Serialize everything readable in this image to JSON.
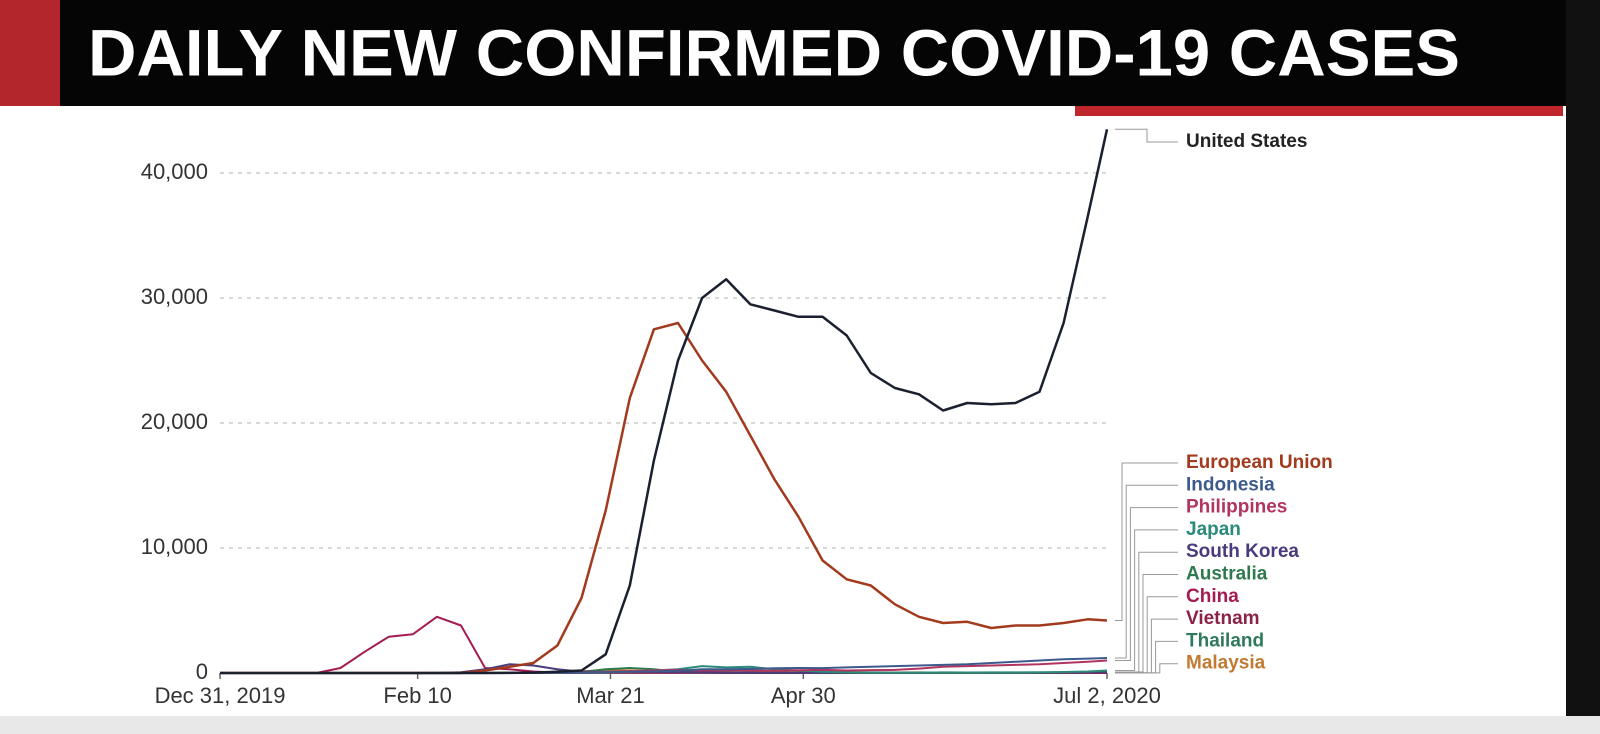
{
  "chart_data": {
    "type": "line",
    "title": "DAILY NEW CONFIRMED COVID-19 CASES",
    "x": [
      "2019-12-31",
      "2020-01-05",
      "2020-01-10",
      "2020-01-15",
      "2020-01-20",
      "2020-01-25",
      "2020-01-30",
      "2020-02-04",
      "2020-02-09",
      "2020-02-14",
      "2020-02-19",
      "2020-02-24",
      "2020-02-29",
      "2020-03-05",
      "2020-03-10",
      "2020-03-15",
      "2020-03-20",
      "2020-03-25",
      "2020-03-30",
      "2020-04-04",
      "2020-04-09",
      "2020-04-14",
      "2020-04-19",
      "2020-04-24",
      "2020-04-29",
      "2020-05-04",
      "2020-05-09",
      "2020-05-14",
      "2020-05-19",
      "2020-05-24",
      "2020-05-29",
      "2020-06-03",
      "2020-06-08",
      "2020-06-13",
      "2020-06-18",
      "2020-06-23",
      "2020-06-28",
      "2020-07-02"
    ],
    "xlim": [
      "2019-12-31",
      "2020-07-02"
    ],
    "xticks": [
      {
        "value": "2019-12-31",
        "label": "Dec 31, 2019"
      },
      {
        "value": "2020-02-10",
        "label": "Feb 10"
      },
      {
        "value": "2020-03-21",
        "label": "Mar 21"
      },
      {
        "value": "2020-04-30",
        "label": "Apr 30"
      },
      {
        "value": "2020-07-02",
        "label": "Jul 2, 2020"
      }
    ],
    "ylim": [
      0,
      44000
    ],
    "yticks": [
      0,
      {
        "value": 10000,
        "label": "10,000"
      },
      {
        "value": 20000,
        "label": "20,000"
      },
      {
        "value": 30000,
        "label": "30,000"
      },
      {
        "value": 40000,
        "label": "40,000"
      }
    ],
    "grid": true,
    "series": [
      {
        "name": "United States",
        "color": "#1b2030",
        "values": [
          0,
          0,
          0,
          0,
          0,
          0,
          0,
          0,
          0,
          0,
          0,
          0,
          10,
          30,
          100,
          200,
          1500,
          7000,
          17000,
          25000,
          30000,
          31500,
          29500,
          29000,
          28500,
          28500,
          27000,
          24000,
          22800,
          22300,
          21000,
          21600,
          21500,
          21600,
          22500,
          28000,
          36500,
          43500
        ]
      },
      {
        "name": "European Union",
        "color": "#a23a1e",
        "values": [
          0,
          0,
          0,
          0,
          0,
          0,
          0,
          0,
          0,
          0,
          0,
          200,
          500,
          800,
          2200,
          6000,
          13000,
          22000,
          27500,
          28000,
          25000,
          22500,
          19000,
          15500,
          12500,
          9000,
          7500,
          7000,
          5500,
          4500,
          4000,
          4100,
          3600,
          3800,
          3800,
          4000,
          4300,
          4200
        ]
      },
      {
        "name": "Indonesia",
        "color": "#3d5a8c",
        "values": [
          0,
          0,
          0,
          0,
          0,
          0,
          0,
          0,
          0,
          0,
          0,
          0,
          0,
          0,
          5,
          20,
          60,
          100,
          120,
          180,
          300,
          300,
          330,
          380,
          400,
          390,
          450,
          500,
          550,
          600,
          650,
          700,
          800,
          900,
          1000,
          1100,
          1150,
          1200
        ]
      },
      {
        "name": "Philippines",
        "color": "#b23460",
        "values": [
          0,
          0,
          0,
          0,
          0,
          0,
          0,
          0,
          0,
          0,
          0,
          0,
          0,
          0,
          10,
          40,
          80,
          150,
          200,
          250,
          200,
          220,
          200,
          180,
          220,
          250,
          200,
          230,
          250,
          350,
          500,
          550,
          600,
          650,
          700,
          800,
          900,
          1000
        ]
      },
      {
        "name": "Japan",
        "color": "#2b8a7a",
        "values": [
          0,
          0,
          0,
          0,
          0,
          0,
          0,
          0,
          0,
          10,
          20,
          20,
          20,
          40,
          40,
          30,
          40,
          100,
          200,
          300,
          550,
          450,
          500,
          300,
          200,
          100,
          60,
          40,
          30,
          30,
          40,
          40,
          50,
          50,
          60,
          80,
          120,
          200
        ]
      },
      {
        "name": "South Korea",
        "color": "#4b3b7c",
        "values": [
          0,
          0,
          0,
          0,
          0,
          0,
          0,
          0,
          0,
          0,
          60,
          300,
          700,
          600,
          300,
          100,
          90,
          100,
          90,
          60,
          40,
          30,
          10,
          10,
          10,
          10,
          30,
          30,
          20,
          20,
          50,
          40,
          40,
          40,
          40,
          40,
          50,
          50
        ]
      },
      {
        "name": "Australia",
        "color": "#2f7a4c",
        "values": [
          0,
          0,
          0,
          0,
          0,
          0,
          0,
          0,
          0,
          0,
          0,
          0,
          0,
          10,
          20,
          80,
          300,
          400,
          300,
          100,
          50,
          30,
          20,
          10,
          10,
          10,
          10,
          10,
          10,
          10,
          10,
          10,
          10,
          10,
          20,
          30,
          50,
          80
        ]
      },
      {
        "name": "China",
        "color": "#a31c52",
        "values": [
          0,
          0,
          0,
          0,
          0,
          400,
          1700,
          2900,
          3100,
          4500,
          3800,
          400,
          300,
          120,
          30,
          20,
          50,
          80,
          60,
          40,
          80,
          50,
          20,
          10,
          5,
          5,
          5,
          5,
          5,
          5,
          5,
          5,
          5,
          20,
          20,
          10,
          10,
          5
        ]
      },
      {
        "name": "Vietnam",
        "color": "#8c2244",
        "values": [
          0,
          0,
          0,
          0,
          0,
          0,
          0,
          0,
          0,
          0,
          0,
          0,
          0,
          0,
          5,
          10,
          10,
          10,
          10,
          5,
          5,
          0,
          0,
          0,
          0,
          0,
          0,
          0,
          0,
          0,
          0,
          0,
          0,
          0,
          0,
          0,
          0,
          0
        ]
      },
      {
        "name": "Thailand",
        "color": "#2f7a5c",
        "values": [
          0,
          0,
          0,
          0,
          0,
          0,
          0,
          0,
          0,
          0,
          0,
          0,
          0,
          5,
          10,
          30,
          100,
          120,
          130,
          100,
          50,
          30,
          20,
          10,
          5,
          5,
          5,
          5,
          5,
          5,
          5,
          5,
          5,
          5,
          5,
          5,
          5,
          5
        ]
      },
      {
        "name": "Malaysia",
        "color": "#c27a32",
        "values": [
          0,
          0,
          0,
          0,
          0,
          0,
          0,
          0,
          0,
          0,
          0,
          0,
          0,
          5,
          20,
          150,
          200,
          200,
          150,
          170,
          150,
          80,
          40,
          50,
          50,
          50,
          70,
          50,
          40,
          50,
          20,
          20,
          10,
          10,
          10,
          10,
          5,
          5
        ]
      }
    ]
  }
}
